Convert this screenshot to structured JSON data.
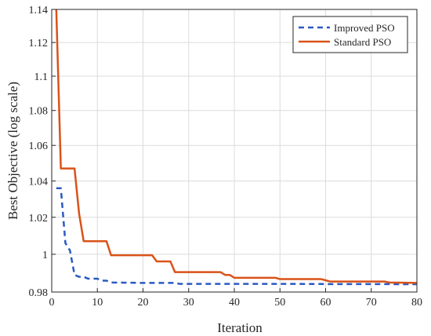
{
  "chart_data": {
    "type": "line",
    "title": "",
    "xlabel": "Iteration",
    "ylabel": "Best Objective (log scale)",
    "xlim": [
      0,
      80
    ],
    "ylim": [
      0.98,
      1.14
    ],
    "yscale": "log",
    "grid": true,
    "legend_position": "top-right",
    "xticks": [
      0,
      10,
      20,
      30,
      40,
      50,
      60,
      70,
      80
    ],
    "yticks": [
      0.98,
      1,
      1.02,
      1.04,
      1.06,
      1.08,
      1.1,
      1.12,
      1.14
    ],
    "xtick_labels": [
      "0",
      "10",
      "20",
      "30",
      "40",
      "50",
      "60",
      "70",
      "80"
    ],
    "ytick_labels": [
      "0.98",
      "1",
      "1.02",
      "1.04",
      "1.06",
      "1.08",
      "1.1",
      "1.12",
      "1.14"
    ],
    "series": [
      {
        "name": "Improved PSO",
        "color": "#2b59c3",
        "style": "dashed",
        "x": [
          1,
          2,
          3,
          4,
          5,
          6,
          7,
          8,
          10,
          11,
          12,
          13,
          20,
          27,
          28,
          40,
          50,
          60,
          70,
          80
        ],
        "y": [
          1.036,
          1.036,
          1.006,
          1.002,
          0.989,
          0.988,
          0.988,
          0.987,
          0.987,
          0.986,
          0.986,
          0.985,
          0.9848,
          0.9848,
          0.9843,
          0.9843,
          0.9843,
          0.9842,
          0.9842,
          0.9841
        ]
      },
      {
        "name": "Standard PSO",
        "color": "#d95319",
        "style": "solid",
        "x": [
          1,
          2,
          3,
          4,
          5,
          6,
          7,
          8,
          12,
          13,
          22,
          23,
          26,
          27,
          37,
          38,
          39,
          40,
          49,
          50,
          59,
          60,
          61,
          73,
          74,
          80
        ],
        "y": [
          1.14,
          1.047,
          1.047,
          1.047,
          1.047,
          1.022,
          1.007,
          1.007,
          1.007,
          0.9995,
          0.9995,
          0.9962,
          0.9962,
          0.9905,
          0.9905,
          0.989,
          0.989,
          0.9875,
          0.9875,
          0.9868,
          0.9868,
          0.9862,
          0.9855,
          0.9855,
          0.985,
          0.9848
        ]
      }
    ]
  }
}
